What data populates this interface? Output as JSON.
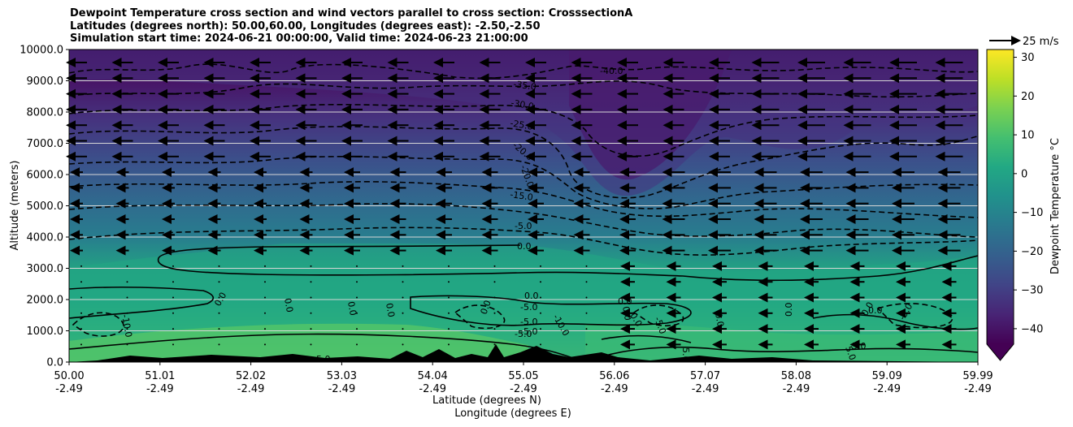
{
  "header": {
    "line1": "Dewpoint Temperature cross section and wind vectors parallel to cross section: CrosssectionA",
    "line2": "Latitudes (degrees north): 50.00,60.00, Longitudes (degrees east): -2.50,-2.50",
    "line3": "Simulation start time: 2024-06-21 00:00:00, Valid time: 2024-06-23 21:00:00"
  },
  "chart_data": {
    "type": "heatmap",
    "ylabel": "Altitude (meters)",
    "xlabel_lat": "Latitude (degrees N)",
    "xlabel_lon": "Longitude (degrees E)",
    "ylim": [
      0,
      10000
    ],
    "y_ticks": [
      "0.0",
      "1000.0",
      "2000.0",
      "3000.0",
      "4000.0",
      "5000.0",
      "6000.0",
      "7000.0",
      "8000.0",
      "9000.0",
      "10000.0"
    ],
    "x_ticks_lat": [
      "50.00",
      "51.01",
      "52.02",
      "53.03",
      "54.04",
      "55.05",
      "56.06",
      "57.07",
      "58.08",
      "59.09",
      "59.99"
    ],
    "x_ticks_lon": [
      "-2.49",
      "-2.49",
      "-2.49",
      "-2.49",
      "-2.49",
      "-2.49",
      "-2.49",
      "-2.49",
      "-2.49",
      "-2.49",
      "-2.49"
    ],
    "grid_y": true,
    "colorbar": {
      "label": "Dewpoint Temperature °C",
      "range": [
        -44,
        32
      ],
      "ticks": [
        "30",
        "20",
        "10",
        "0",
        "−10",
        "−20",
        "−30",
        "−40"
      ],
      "tick_values": [
        30,
        20,
        10,
        0,
        -10,
        -20,
        -30,
        -40
      ],
      "colormap": "viridis",
      "extend": "min"
    },
    "wind_key": "25 m/s",
    "contour_labels": [
      "-40.0",
      "-35.0",
      "-30.0",
      "-25.0",
      "-20.0",
      "-20.0",
      "-15.0",
      "-5.0",
      "0.0",
      "0.0",
      "-10.0",
      "0.0",
      "0.0",
      "0.0",
      "0.0",
      "0.0",
      "-5.0",
      "-5.0",
      "-10.0",
      "-5.0",
      "-5.0",
      "0.0",
      "0.0",
      "0.0",
      "-5.0",
      "0.0",
      "5.0",
      "0.0",
      "0.0",
      "0.0",
      "-5.0",
      "5.0",
      "5.0",
      "-5.0"
    ],
    "contour_levels": [
      -40,
      -35,
      -30,
      -25,
      -20,
      -15,
      -10,
      -5,
      0,
      5
    ]
  }
}
